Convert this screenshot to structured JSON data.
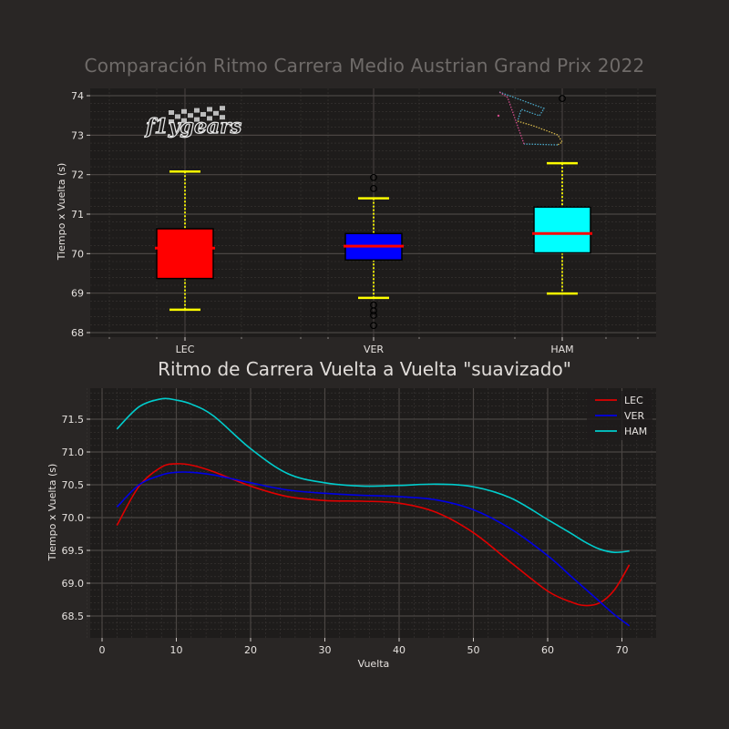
{
  "figure": {
    "background": "#292625",
    "axes_background": "#1e1c1b"
  },
  "top_chart": {
    "title": "Comparación Ritmo Carrera Medio Austrian Grand Prix 2022",
    "ylabel": "Tiempo x Vuelta (s)",
    "yticks": [
      "68",
      "69",
      "70",
      "71",
      "72",
      "73",
      "74"
    ],
    "categories": [
      "LEC",
      "VER",
      "HAM"
    ],
    "logo_text": "f1ygears"
  },
  "bottom_chart": {
    "title": "Ritmo de Carrera Vuelta a Vuelta \"suavizado\"",
    "ylabel": "Tiempo x Vuelta (s)",
    "xlabel": "Vuelta",
    "yticks": [
      "68.5",
      "69.0",
      "69.5",
      "70.0",
      "70.5",
      "71.0",
      "71.5"
    ],
    "xticks": [
      "0",
      "10",
      "20",
      "30",
      "40",
      "50",
      "60",
      "70"
    ],
    "legend": [
      "LEC",
      "VER",
      "HAM"
    ]
  },
  "chart_data": [
    {
      "type": "box",
      "title": "Comparación Ritmo Carrera Medio Austrian Grand Prix 2022",
      "xlabel": "",
      "ylabel": "Tiempo x Vuelta (s)",
      "ylim": [
        67.9,
        74.2
      ],
      "grid": true,
      "categories": [
        "LEC",
        "VER",
        "HAM"
      ],
      "series": [
        {
          "name": "LEC",
          "color": "#ff0000",
          "whisker_low": 68.58,
          "q1": 69.37,
          "median": 70.14,
          "q3": 70.63,
          "whisker_high": 72.08,
          "outliers": []
        },
        {
          "name": "VER",
          "color": "#0000ff",
          "whisker_low": 68.88,
          "q1": 69.84,
          "median": 70.19,
          "q3": 70.51,
          "whisker_high": 71.4,
          "outliers": [
            71.93,
            71.65,
            68.7,
            68.55,
            68.44,
            68.18
          ]
        },
        {
          "name": "HAM",
          "color": "#00ffff",
          "whisker_low": 68.99,
          "q1": 70.02,
          "median": 70.51,
          "q3": 71.18,
          "whisker_high": 72.29,
          "outliers": [
            73.93
          ]
        }
      ],
      "styles": {
        "whisker_color": "#ffff00",
        "median_color": "#ff0000",
        "box_edge": "#000000"
      }
    },
    {
      "type": "line",
      "title": "Ritmo de Carrera Vuelta a Vuelta \"suavizado\"",
      "xlabel": "Vuelta",
      "ylabel": "Tiempo x Vuelta (s)",
      "xlim": [
        -2,
        74
      ],
      "ylim": [
        68.2,
        71.95
      ],
      "grid": true,
      "legend_position": "upper right",
      "x": [
        2,
        5,
        8,
        10,
        12,
        15,
        20,
        25,
        30,
        35,
        40,
        45,
        50,
        55,
        60,
        63,
        65,
        67,
        69,
        71
      ],
      "series": [
        {
          "name": "LEC",
          "color": "#e00000",
          "values": [
            69.88,
            70.48,
            70.77,
            70.82,
            70.8,
            70.7,
            70.48,
            70.32,
            70.26,
            70.25,
            70.22,
            70.08,
            69.77,
            69.32,
            68.88,
            68.72,
            68.66,
            68.7,
            68.9,
            69.28
          ]
        },
        {
          "name": "VER",
          "color": "#0000e6",
          "values": [
            70.16,
            70.5,
            70.65,
            70.69,
            70.69,
            70.65,
            70.53,
            70.42,
            70.37,
            70.34,
            70.32,
            70.27,
            70.12,
            69.83,
            69.42,
            69.12,
            68.92,
            68.72,
            68.52,
            68.35
          ]
        },
        {
          "name": "HAM",
          "color": "#00cccc",
          "values": [
            71.35,
            71.69,
            71.81,
            71.79,
            71.73,
            71.55,
            71.05,
            70.67,
            70.53,
            70.48,
            70.49,
            70.51,
            70.47,
            70.3,
            69.97,
            69.77,
            69.63,
            69.52,
            69.47,
            69.49
          ]
        }
      ]
    }
  ]
}
